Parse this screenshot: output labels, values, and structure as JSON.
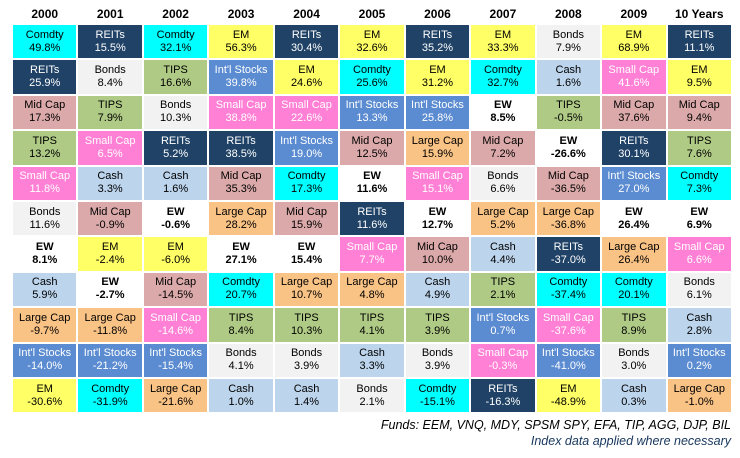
{
  "chart_data": {
    "type": "table",
    "title": "Asset class returns by year (ranked best to worst)",
    "columns": [
      "2000",
      "2001",
      "2002",
      "2003",
      "2004",
      "2005",
      "2006",
      "2007",
      "2008",
      "2009",
      "10 Years"
    ],
    "legend_position": "none",
    "grid": "2px white gaps between colored cells",
    "asset_styles": {
      "Comdty": {
        "bg": "#00FFFF",
        "fg": "#000000",
        "bold": false
      },
      "REITs": {
        "bg": "#1F4266",
        "fg": "#FFFFFF",
        "bold": false
      },
      "EM": {
        "bg": "#FFFF66",
        "fg": "#000000",
        "bold": false
      },
      "Int'l Stocks": {
        "bg": "#5B8BD0",
        "fg": "#FFFFFF",
        "bold": false
      },
      "Small Cap": {
        "bg": "#FF80D5",
        "fg": "#FFFFFF",
        "bold": false
      },
      "Mid Cap": {
        "bg": "#DBA9A9",
        "fg": "#000000",
        "bold": false
      },
      "TIPS": {
        "bg": "#AFCA85",
        "fg": "#000000",
        "bold": false
      },
      "Bonds": {
        "bg": "#F2F2F2",
        "fg": "#000000",
        "bold": false
      },
      "EW": {
        "bg": "#FFFFFF",
        "fg": "#000000",
        "bold": true
      },
      "Cash": {
        "bg": "#BCD4EC",
        "fg": "#000000",
        "bold": false
      },
      "Large Cap": {
        "bg": "#FAC386",
        "fg": "#000000",
        "bold": false
      }
    },
    "rankings": [
      {
        "column": "2000",
        "cells": [
          [
            "Comdty",
            "49.8%"
          ],
          [
            "REITs",
            "25.9%"
          ],
          [
            "Mid Cap",
            "17.3%"
          ],
          [
            "TIPS",
            "13.2%"
          ],
          [
            "Small Cap",
            "11.8%"
          ],
          [
            "Bonds",
            "11.6%"
          ],
          [
            "EW",
            "8.1%"
          ],
          [
            "Cash",
            "5.9%"
          ],
          [
            "Large Cap",
            "-9.7%"
          ],
          [
            "Int'l Stocks",
            "-14.0%"
          ],
          [
            "EM",
            "-30.6%"
          ]
        ]
      },
      {
        "column": "2001",
        "cells": [
          [
            "REITs",
            "15.5%"
          ],
          [
            "Bonds",
            "8.4%"
          ],
          [
            "TIPS",
            "7.9%"
          ],
          [
            "Small Cap",
            "6.5%"
          ],
          [
            "Cash",
            "3.3%"
          ],
          [
            "Mid Cap",
            "-0.9%"
          ],
          [
            "EM",
            "-2.4%"
          ],
          [
            "EW",
            "-2.7%"
          ],
          [
            "Large Cap",
            "-11.8%"
          ],
          [
            "Int'l Stocks",
            "-21.2%"
          ],
          [
            "Comdty",
            "-31.9%"
          ]
        ]
      },
      {
        "column": "2002",
        "cells": [
          [
            "Comdty",
            "32.1%"
          ],
          [
            "TIPS",
            "16.6%"
          ],
          [
            "Bonds",
            "10.3%"
          ],
          [
            "REITs",
            "5.2%"
          ],
          [
            "Cash",
            "1.6%"
          ],
          [
            "EW",
            "-0.6%"
          ],
          [
            "EM",
            "-6.0%"
          ],
          [
            "Mid Cap",
            "-14.5%"
          ],
          [
            "Small Cap",
            "-14.6%"
          ],
          [
            "Int'l Stocks",
            "-15.4%"
          ],
          [
            "Large Cap",
            "-21.6%"
          ]
        ]
      },
      {
        "column": "2003",
        "cells": [
          [
            "EM",
            "56.3%"
          ],
          [
            "Int'l Stocks",
            "39.8%"
          ],
          [
            "Small Cap",
            "38.8%"
          ],
          [
            "REITs",
            "38.5%"
          ],
          [
            "Mid Cap",
            "35.3%"
          ],
          [
            "Large Cap",
            "28.2%"
          ],
          [
            "EW",
            "27.1%"
          ],
          [
            "Comdty",
            "20.7%"
          ],
          [
            "TIPS",
            "8.4%"
          ],
          [
            "Bonds",
            "4.1%"
          ],
          [
            "Cash",
            "1.0%"
          ]
        ]
      },
      {
        "column": "2004",
        "cells": [
          [
            "REITs",
            "30.4%"
          ],
          [
            "EM",
            "24.6%"
          ],
          [
            "Small Cap",
            "22.6%"
          ],
          [
            "Int'l Stocks",
            "19.0%"
          ],
          [
            "Comdty",
            "17.3%"
          ],
          [
            "Mid Cap",
            "15.9%"
          ],
          [
            "EW",
            "15.4%"
          ],
          [
            "Large Cap",
            "10.7%"
          ],
          [
            "TIPS",
            "10.3%"
          ],
          [
            "Bonds",
            "3.9%"
          ],
          [
            "Cash",
            "1.4%"
          ]
        ]
      },
      {
        "column": "2005",
        "cells": [
          [
            "EM",
            "32.6%"
          ],
          [
            "Comdty",
            "25.6%"
          ],
          [
            "Int'l Stocks",
            "13.3%"
          ],
          [
            "Mid Cap",
            "12.5%"
          ],
          [
            "EW",
            "11.6%"
          ],
          [
            "REITs",
            "11.6%"
          ],
          [
            "Small Cap",
            "7.7%"
          ],
          [
            "Large Cap",
            "4.8%"
          ],
          [
            "TIPS",
            "4.1%"
          ],
          [
            "Cash",
            "3.3%"
          ],
          [
            "Bonds",
            "2.1%"
          ]
        ]
      },
      {
        "column": "2006",
        "cells": [
          [
            "REITs",
            "35.2%"
          ],
          [
            "EM",
            "31.2%"
          ],
          [
            "Int'l Stocks",
            "25.8%"
          ],
          [
            "Large Cap",
            "15.9%"
          ],
          [
            "Small Cap",
            "15.1%"
          ],
          [
            "EW",
            "12.7%"
          ],
          [
            "Mid Cap",
            "10.0%"
          ],
          [
            "Cash",
            "4.9%"
          ],
          [
            "TIPS",
            "3.9%"
          ],
          [
            "Bonds",
            "3.9%"
          ],
          [
            "Comdty",
            "-15.1%"
          ]
        ]
      },
      {
        "column": "2007",
        "cells": [
          [
            "EM",
            "33.3%"
          ],
          [
            "Comdty",
            "32.7%"
          ],
          [
            "EW",
            "8.5%"
          ],
          [
            "Mid Cap",
            "7.2%"
          ],
          [
            "Bonds",
            "6.6%"
          ],
          [
            "Large Cap",
            "5.2%"
          ],
          [
            "Cash",
            "4.4%"
          ],
          [
            "TIPS",
            "2.1%"
          ],
          [
            "Int'l Stocks",
            "0.7%"
          ],
          [
            "Small Cap",
            "-0.3%"
          ],
          [
            "REITs",
            "-16.3%"
          ]
        ]
      },
      {
        "column": "2008",
        "cells": [
          [
            "Bonds",
            "7.9%"
          ],
          [
            "Cash",
            "1.6%"
          ],
          [
            "TIPS",
            "-0.5%"
          ],
          [
            "EW",
            "-26.6%"
          ],
          [
            "Mid Cap",
            "-36.5%"
          ],
          [
            "Large Cap",
            "-36.8%"
          ],
          [
            "REITs",
            "-37.0%"
          ],
          [
            "Comdty",
            "-37.4%"
          ],
          [
            "Small Cap",
            "-37.6%"
          ],
          [
            "Int'l Stocks",
            "-41.0%"
          ],
          [
            "EM",
            "-48.9%"
          ]
        ]
      },
      {
        "column": "2009",
        "cells": [
          [
            "EM",
            "68.9%"
          ],
          [
            "Small Cap",
            "41.6%"
          ],
          [
            "Mid Cap",
            "37.6%"
          ],
          [
            "REITs",
            "30.1%"
          ],
          [
            "Int'l Stocks",
            "27.0%"
          ],
          [
            "EW",
            "26.4%"
          ],
          [
            "Large Cap",
            "26.4%"
          ],
          [
            "Comdty",
            "20.1%"
          ],
          [
            "TIPS",
            "8.9%"
          ],
          [
            "Bonds",
            "3.0%"
          ],
          [
            "Cash",
            "0.3%"
          ]
        ]
      },
      {
        "column": "10 Years",
        "cells": [
          [
            "REITs",
            "11.1%"
          ],
          [
            "EM",
            "9.5%"
          ],
          [
            "Mid Cap",
            "9.4%"
          ],
          [
            "TIPS",
            "7.6%"
          ],
          [
            "Comdty",
            "7.3%"
          ],
          [
            "EW",
            "6.9%"
          ],
          [
            "Small Cap",
            "6.6%"
          ],
          [
            "Bonds",
            "6.1%"
          ],
          [
            "Cash",
            "2.8%"
          ],
          [
            "Int'l Stocks",
            "0.2%"
          ],
          [
            "Large Cap",
            "-1.0%"
          ]
        ]
      }
    ]
  },
  "footer": {
    "line1": "Funds: EEM, VNQ, MDY, SPSM SPY, EFA, TIP, AGG, DJP, BIL",
    "line2": "Index data applied where necessary"
  }
}
